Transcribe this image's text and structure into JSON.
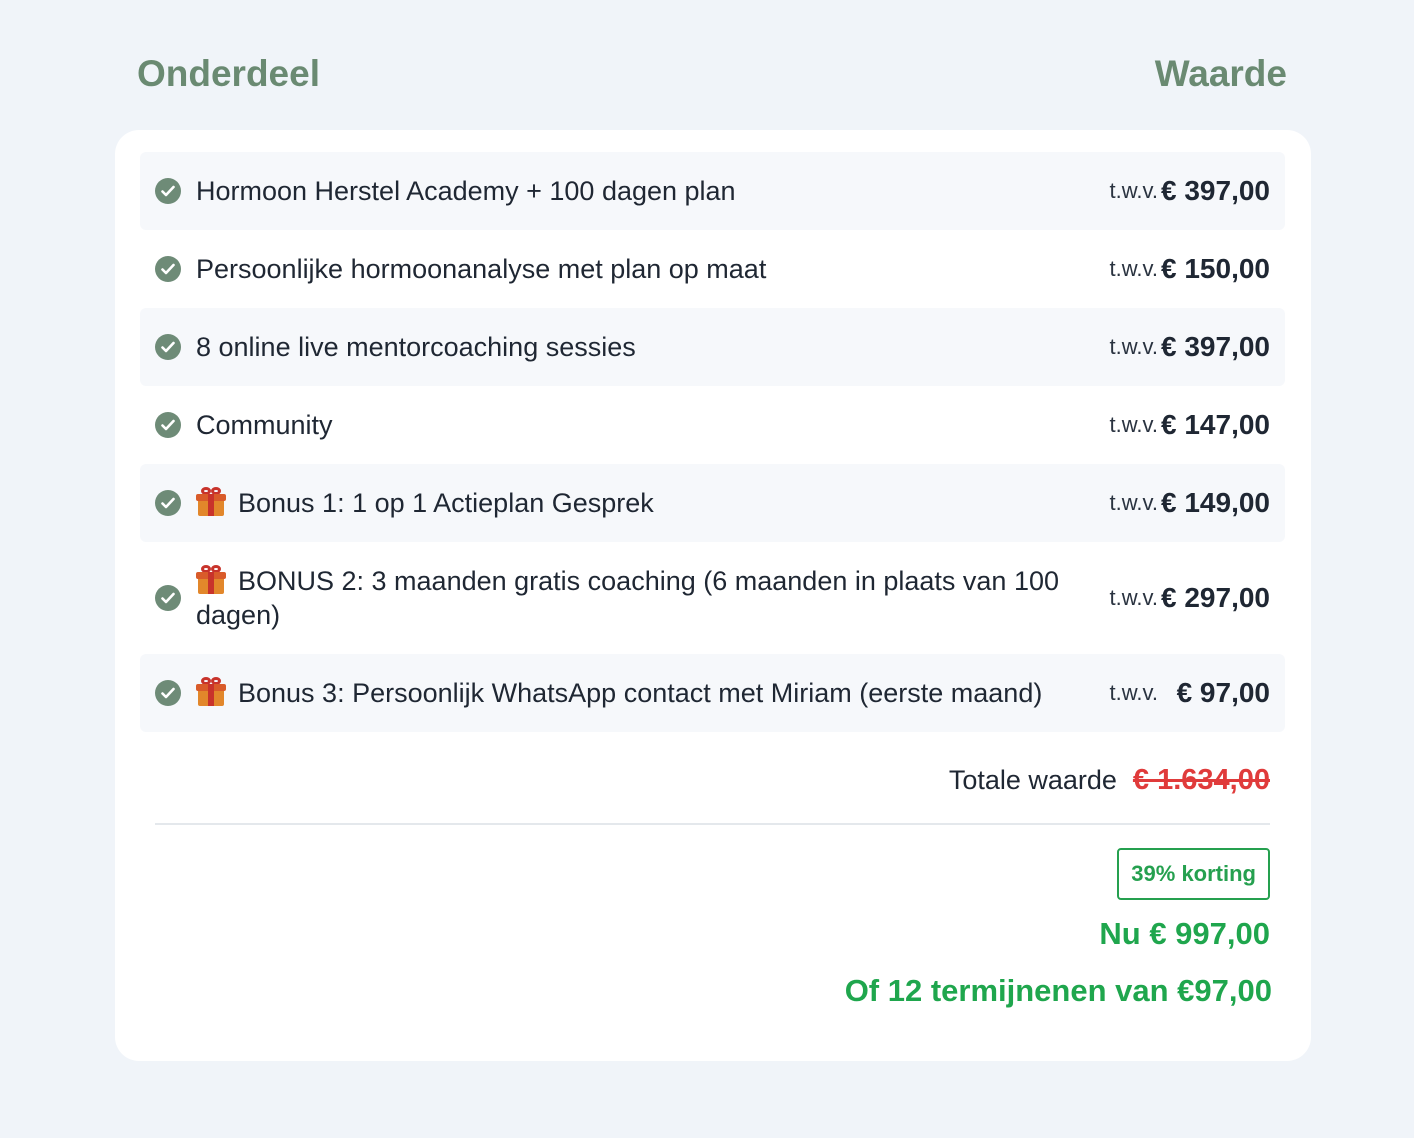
{
  "header": {
    "left_label": "Onderdeel",
    "right_label": "Waarde"
  },
  "items": [
    {
      "label": "Hormoon Herstel Academy + 100 dagen plan",
      "gift": false,
      "twv": "t.w.v.",
      "price": "€ 397,00"
    },
    {
      "label": "Persoonlijke hormoonanalyse met plan op maat",
      "gift": false,
      "twv": "t.w.v.",
      "price": "€ 150,00"
    },
    {
      "label": "8 online live mentorcoaching sessies",
      "gift": false,
      "twv": "t.w.v.",
      "price": "€ 397,00"
    },
    {
      "label": "Community",
      "gift": false,
      "twv": "t.w.v.",
      "price": "€ 147,00"
    },
    {
      "label": "Bonus 1: 1 op 1 Actieplan Gesprek",
      "gift": true,
      "twv": "t.w.v.",
      "price": "€ 149,00"
    },
    {
      "label": "BONUS 2: 3 maanden gratis coaching (6 maanden in plaats van 100 dagen)",
      "gift": true,
      "twv": "t.w.v.",
      "price": "€ 297,00"
    },
    {
      "label": "Bonus 3: Persoonlijk WhatsApp contact met Miriam (eerste maand)",
      "gift": true,
      "twv": "t.w.v.",
      "price": "€ 97,00"
    }
  ],
  "summary": {
    "total_label": "Totale waarde",
    "total_value": "€ 1.634,00",
    "discount_badge": "39% korting",
    "now_price": "Nu € 997,00",
    "installments": "Of 12 termijnenen van €97,00"
  },
  "icons": {
    "check": "check-circle-icon",
    "gift": "gift-icon"
  },
  "colors": {
    "background": "#f0f4f9",
    "header_green": "#6a8a72",
    "check_green": "#6e8b77",
    "price_green": "#1fa64d",
    "strike_red": "#e03b3b"
  }
}
